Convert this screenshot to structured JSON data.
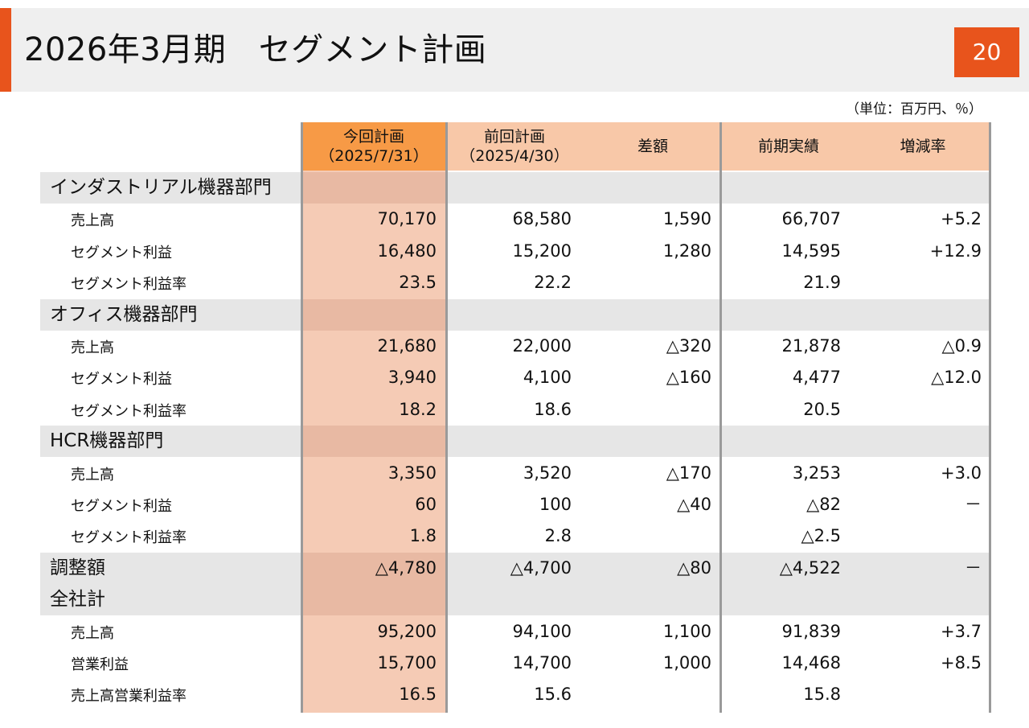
{
  "header": {
    "title": "2026年3月期　セグメント計画",
    "page_number": "20",
    "unit_note": "（単位：百万円、％）"
  },
  "columns": {
    "current_plan": {
      "label": "今回計画",
      "date": "（2025/7/31）"
    },
    "previous_plan": {
      "label": "前回計画",
      "date": "（2025/4/30）"
    },
    "difference": {
      "label": "差額"
    },
    "prior_year_actual": {
      "label": "前期実績"
    },
    "change_rate": {
      "label": "増減率"
    }
  },
  "sections": [
    {
      "name": "インダストリアル機器部門",
      "rows": [
        {
          "label": "売上高",
          "current": "70,170",
          "previous": "68,580",
          "diff": "1,590",
          "prior": "66,707",
          "rate": "+5.2"
        },
        {
          "label": "セグメント利益",
          "current": "16,480",
          "previous": "15,200",
          "diff": "1,280",
          "prior": "14,595",
          "rate": "+12.9"
        },
        {
          "label": "セグメント利益率",
          "current": "23.5",
          "previous": "22.2",
          "diff": "",
          "prior": "21.9",
          "rate": ""
        }
      ]
    },
    {
      "name": "オフィス機器部門",
      "rows": [
        {
          "label": "売上高",
          "current": "21,680",
          "previous": "22,000",
          "diff": "△320",
          "prior": "21,878",
          "rate": "△0.9"
        },
        {
          "label": "セグメント利益",
          "current": "3,940",
          "previous": "4,100",
          "diff": "△160",
          "prior": "4,477",
          "rate": "△12.0"
        },
        {
          "label": "セグメント利益率",
          "current": "18.2",
          "previous": "18.6",
          "diff": "",
          "prior": "20.5",
          "rate": ""
        }
      ]
    },
    {
      "name": "HCR機器部門",
      "rows": [
        {
          "label": "売上高",
          "current": "3,350",
          "previous": "3,520",
          "diff": "△170",
          "prior": "3,253",
          "rate": "+3.0"
        },
        {
          "label": "セグメント利益",
          "current": "60",
          "previous": "100",
          "diff": "△40",
          "prior": "△82",
          "rate": "－"
        },
        {
          "label": "セグメント利益率",
          "current": "1.8",
          "previous": "2.8",
          "diff": "",
          "prior": "△2.5",
          "rate": ""
        }
      ]
    },
    {
      "name": "調整額",
      "inline": {
        "current": "△4,780",
        "previous": "△4,700",
        "diff": "△80",
        "prior": "△4,522",
        "rate": "－"
      },
      "rows": []
    },
    {
      "name": "全社計",
      "rows": [
        {
          "label": "売上高",
          "current": "95,200",
          "previous": "94,100",
          "diff": "1,100",
          "prior": "91,839",
          "rate": "+3.7"
        },
        {
          "label": "営業利益",
          "current": "15,700",
          "previous": "14,700",
          "diff": "1,000",
          "prior": "14,468",
          "rate": "+8.5"
        },
        {
          "label": "売上高営業利益率",
          "current": "16.5",
          "previous": "15.6",
          "diff": "",
          "prior": "15.8",
          "rate": ""
        }
      ]
    }
  ],
  "colors": {
    "accent": "#e8541c",
    "header_current": "#f79a46",
    "header_band": "#f8c8a8",
    "current_column": "#f5cbb5",
    "section_band": "#e6e6e6"
  }
}
